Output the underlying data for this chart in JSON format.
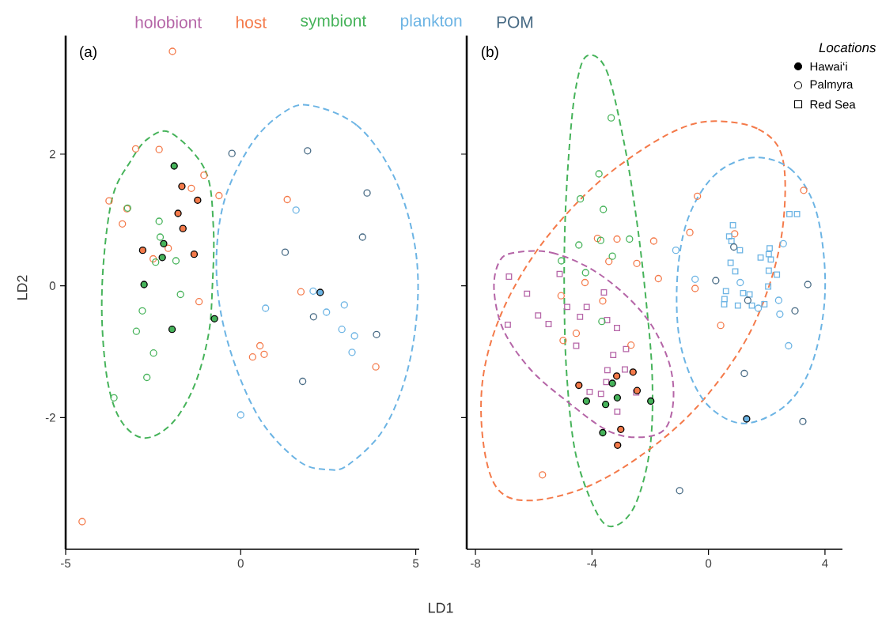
{
  "chart_data": [
    {
      "type": "scatter",
      "title": "(a)",
      "xlabel": "LD1",
      "ylabel": "LD2",
      "xlim": [
        -5,
        5.1
      ],
      "ylim": [
        -4,
        3.8
      ],
      "xticks": [
        -5,
        0,
        5
      ],
      "yticks": [
        -2,
        0,
        2
      ],
      "grid": false,
      "series": [
        {
          "marker": "circle",
          "color": "#f47a4a",
          "x": [
            -1.95,
            -3.0,
            -2.33,
            -1.05,
            -1.41,
            -0.62,
            -3.76,
            -3.25,
            -3.38,
            -2.07,
            -2.5,
            -1.19,
            -4.53,
            1.33,
            1.72,
            0.55,
            0.34,
            0.67,
            3.86
          ],
          "values": [
            3.56,
            2.08,
            2.07,
            1.68,
            1.48,
            1.37,
            1.29,
            1.17,
            0.94,
            0.57,
            0.41,
            -0.24,
            -3.58,
            1.31,
            -0.09,
            -0.91,
            -1.08,
            -1.04,
            -1.23
          ]
        },
        {
          "marker": "circle",
          "color": "#46b35a",
          "x": [
            -3.23,
            -2.33,
            -2.3,
            -2.43,
            -1.85,
            -1.72,
            -2.81,
            -2.98,
            -2.49,
            -2.68,
            -3.62
          ],
          "values": [
            1.18,
            0.98,
            0.74,
            0.36,
            0.38,
            -0.13,
            -0.38,
            -0.69,
            -1.02,
            -1.39,
            -1.7
          ]
        },
        {
          "marker": "circle",
          "color": "#6cb4e4",
          "x": [
            1.58,
            2.07,
            0.71,
            2.45,
            2.96,
            2.89,
            3.25,
            3.18,
            0.0
          ],
          "values": [
            1.15,
            -0.08,
            -0.34,
            -0.4,
            -0.29,
            -0.66,
            -0.76,
            -1.01,
            -1.96
          ]
        },
        {
          "marker": "circle",
          "color": "#476a84",
          "x": [
            -0.25,
            1.91,
            3.61,
            3.48,
            1.27,
            2.08,
            3.88,
            1.77
          ],
          "values": [
            2.01,
            2.05,
            1.41,
            0.74,
            0.51,
            -0.47,
            -0.74,
            -1.45
          ]
        },
        {
          "marker": "circle",
          "color": "#000000",
          "colors": [
            "#f47a4a",
            "#f47a4a",
            "#f47a4a",
            "#f47a4a",
            "#f47a4a",
            "#f47a4a",
            "#46b35a",
            "#46b35a",
            "#46b35a",
            "#46b35a",
            "#46b35a",
            "#46b35a",
            "#6cb4e4"
          ],
          "x": [
            -1.68,
            -1.23,
            -1.79,
            -1.65,
            -2.8,
            -1.33,
            -1.9,
            -2.2,
            -2.24,
            -2.76,
            -0.75,
            -1.96,
            2.27
          ],
          "values": [
            1.51,
            1.3,
            1.1,
            0.87,
            0.54,
            0.48,
            1.82,
            0.64,
            0.43,
            0.02,
            -0.5,
            -0.66,
            -0.1
          ]
        }
      ]
    },
    {
      "type": "scatter",
      "title": "(b)",
      "xlim": [
        -8.3,
        4.6
      ],
      "ylim": [
        -4,
        3.8
      ],
      "xticks": [
        -8,
        -4,
        0,
        4
      ],
      "yticks": [
        -2,
        0,
        2
      ],
      "tick_labels": "x",
      "grid": false,
      "legend": "top",
      "legend_title": "Locations",
      "annotations": [
        "Palmyra",
        "Red Sea"
      ],
      "series": [
        {
          "name": "holobiont",
          "marker": "square",
          "color": "#b565a7",
          "x": [
            -6.85,
            -5.11,
            -6.23,
            -3.59,
            -4.85,
            -4.18,
            -5.85,
            -6.89,
            -5.49,
            -4.41,
            -3.48,
            -3.14,
            -4.54,
            -2.83,
            -3.27,
            -3.47,
            -2.87,
            -3.51,
            -4.08,
            -3.69,
            -2.48,
            -3.13
          ],
          "values": [
            0.14,
            0.18,
            -0.12,
            -0.1,
            -0.32,
            -0.32,
            -0.45,
            -0.59,
            -0.58,
            -0.47,
            -0.52,
            -0.64,
            -0.91,
            -0.96,
            -1.05,
            -1.28,
            -1.27,
            -1.46,
            -1.61,
            -1.64,
            -1.62,
            -1.91
          ]
        },
        {
          "name": "host",
          "marker": "circle",
          "color": "#f47a4a",
          "x": [
            -3.81,
            -3.14,
            -1.88,
            -3.42,
            -2.46,
            -4.24,
            -1.72,
            -0.46,
            -5.06,
            -3.63,
            -4.99,
            -4.54,
            -2.66,
            -5.7,
            -0.38,
            -0.64,
            3.27,
            0.9,
            0.42
          ],
          "values": [
            0.72,
            0.71,
            0.68,
            0.37,
            0.34,
            0.05,
            0.11,
            -0.04,
            -0.15,
            -0.23,
            -0.83,
            -0.72,
            -0.9,
            -2.87,
            1.36,
            0.81,
            1.45,
            0.79,
            -0.6
          ]
        },
        {
          "name": "symbiont",
          "marker": "circle",
          "color": "#46b35a",
          "x": [
            -3.34,
            -3.76,
            -4.4,
            -3.61,
            -3.7,
            -2.71,
            -4.45,
            -3.3,
            -5.05,
            -4.22,
            -3.66
          ],
          "values": [
            2.55,
            1.7,
            1.32,
            1.16,
            0.69,
            0.71,
            0.62,
            0.45,
            0.38,
            0.2,
            -0.54
          ]
        },
        {
          "name": "plankton",
          "marker": "circle",
          "color": "#6cb4e4",
          "x": [
            -1.12,
            -0.46,
            2.57,
            1.09,
            1.71,
            2.41,
            2.45,
            2.75
          ],
          "values": [
            0.54,
            0.1,
            0.64,
            0.05,
            -0.34,
            -0.22,
            -0.43,
            -0.91
          ]
        },
        {
          "marker": "square",
          "color": "#6cb4e4",
          "x": [
            2.78,
            3.04,
            0.84,
            0.71,
            0.79,
            1.08,
            2.1,
            1.79,
            2.07,
            2.14,
            0.76,
            0.92,
            2.07,
            2.35,
            2.05,
            0.6,
            1.19,
            1.41,
            0.55,
            0.54,
            1.01,
            1.49,
            1.92
          ],
          "values": [
            1.09,
            1.09,
            0.92,
            0.75,
            0.68,
            0.54,
            0.57,
            0.43,
            0.48,
            0.4,
            0.35,
            0.22,
            0.23,
            0.17,
            -0.01,
            -0.08,
            -0.11,
            -0.13,
            -0.2,
            -0.28,
            -0.3,
            -0.3,
            -0.28
          ]
        },
        {
          "name": "POM",
          "marker": "circle",
          "color": "#476a84",
          "x": [
            0.87,
            0.25,
            3.41,
            1.35,
            2.97,
            1.23,
            3.24,
            -0.99
          ],
          "values": [
            0.59,
            0.08,
            0.02,
            -0.22,
            -0.38,
            -1.33,
            -2.06,
            -3.11
          ]
        },
        {
          "name": "Hawai‘i",
          "marker": "circle",
          "color": "#000000",
          "colors": [
            "#f47a4a",
            "#f47a4a",
            "#f47a4a",
            "#f47a4a",
            "#f47a4a",
            "#f47a4a",
            "#46b35a",
            "#46b35a",
            "#46b35a",
            "#46b35a",
            "#46b35a",
            "#46b35a",
            "#6cb4e4"
          ],
          "x": [
            -2.59,
            -3.15,
            -4.45,
            -2.45,
            -3.01,
            -3.12,
            -3.3,
            -4.19,
            -3.53,
            -3.13,
            -1.98,
            -3.63,
            1.31
          ],
          "values": [
            -1.31,
            -1.37,
            -1.51,
            -1.59,
            -2.18,
            -2.42,
            -1.48,
            -1.75,
            -1.8,
            -1.7,
            -1.75,
            -2.23,
            -2.02
          ]
        }
      ]
    }
  ]
}
